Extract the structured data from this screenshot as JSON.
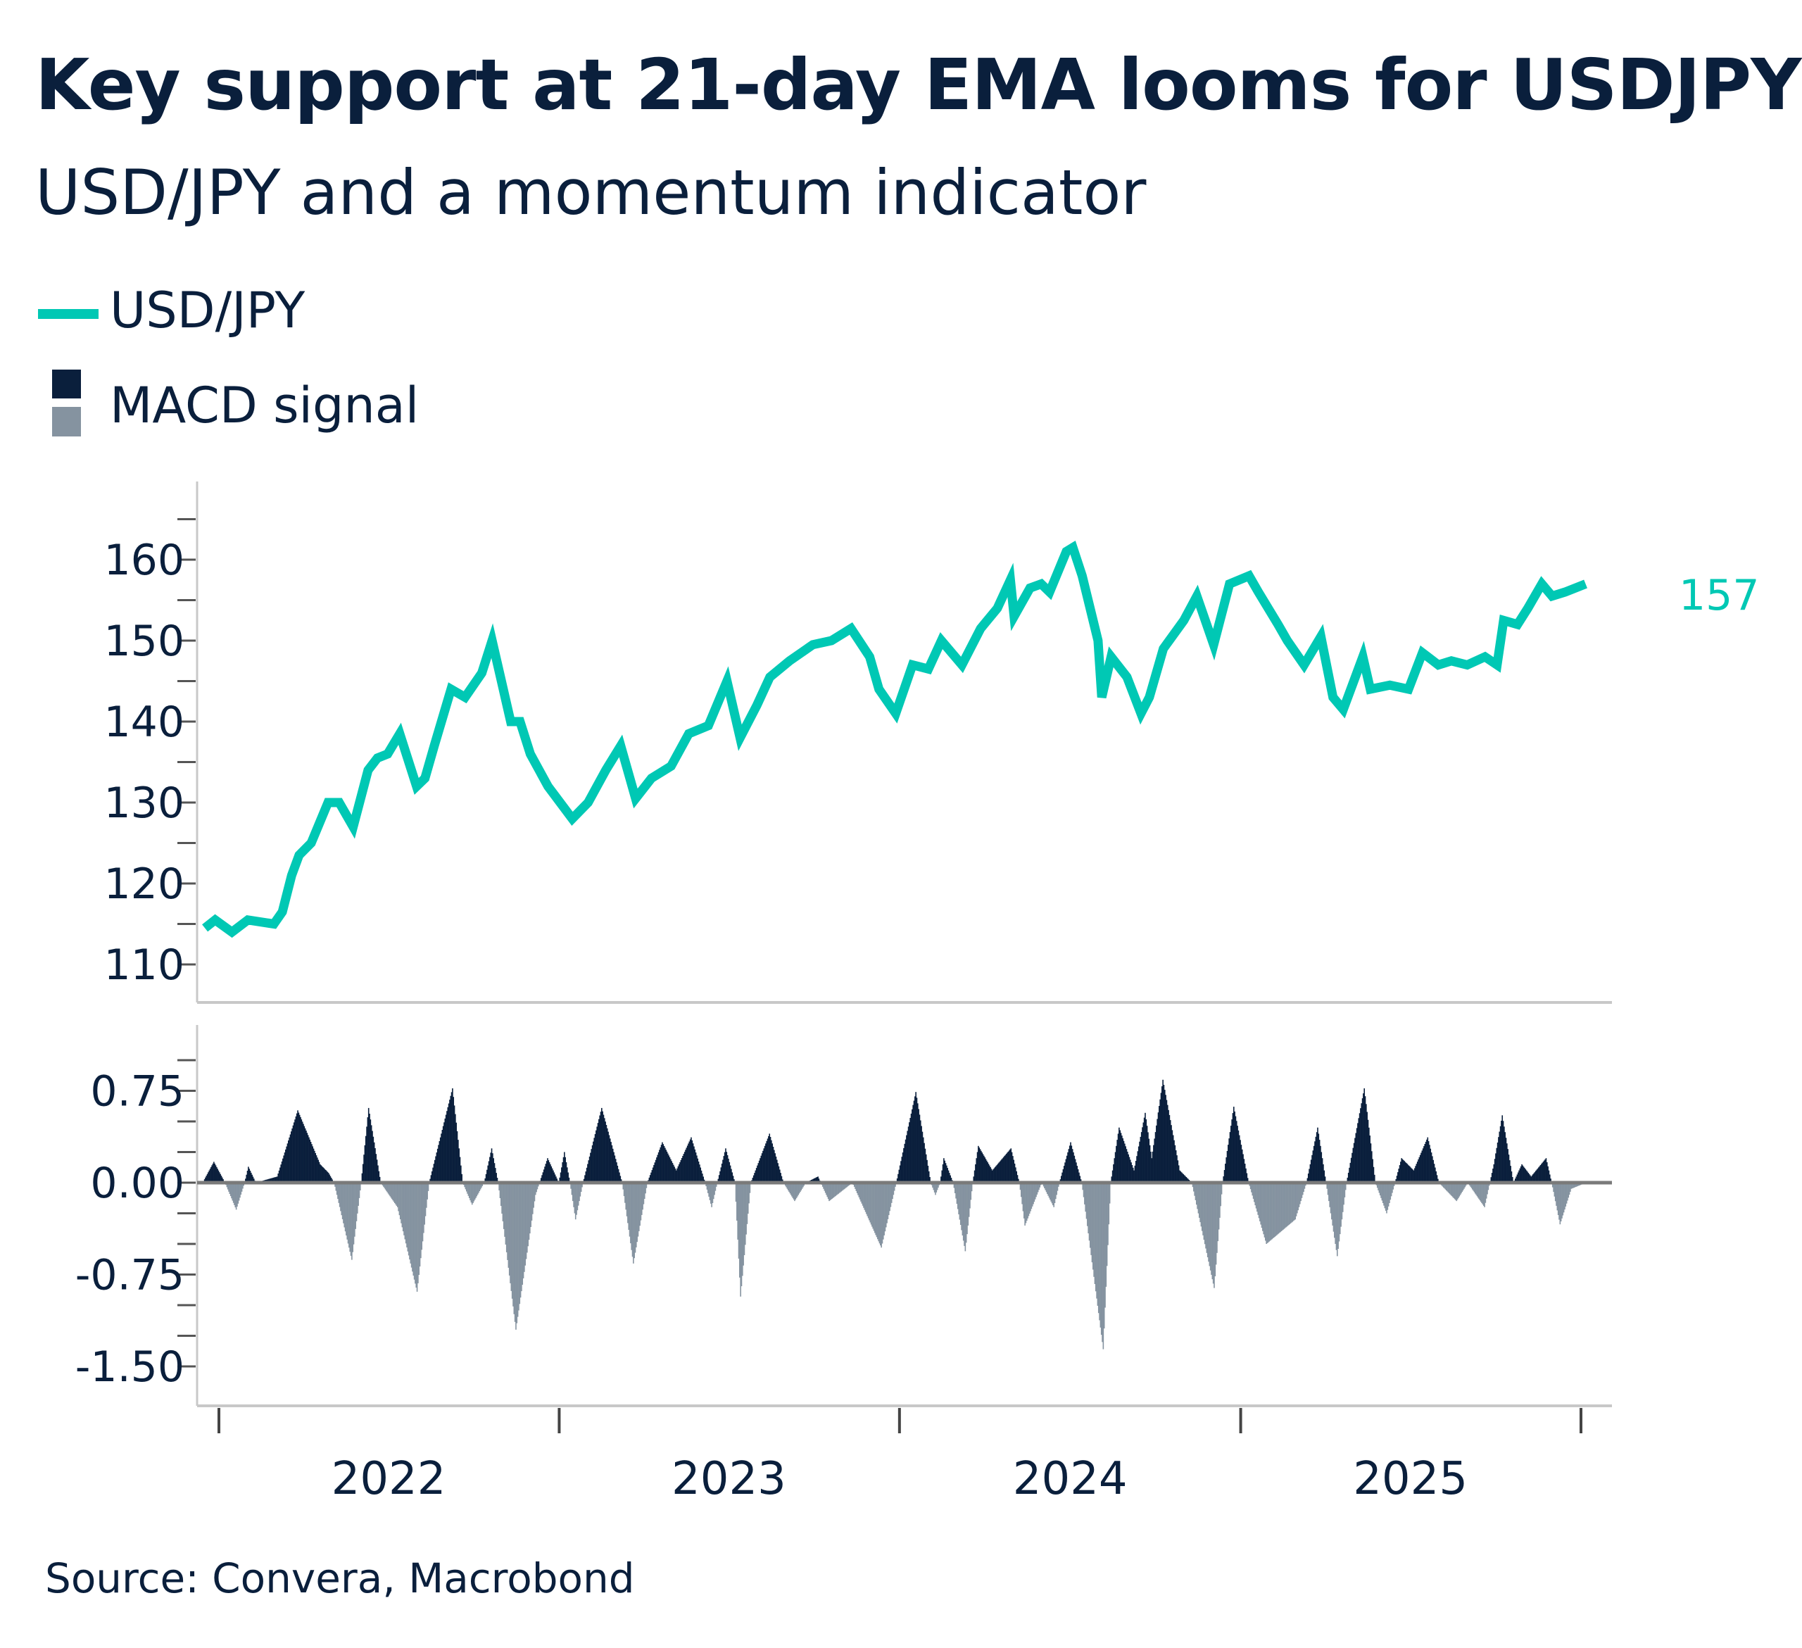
{
  "title": "Key support at 21-day EMA looms for USDJPY",
  "subtitle": "USD/JPY and a momentum indicator",
  "source": "Source: Convera, Macrobond",
  "colors": {
    "usdjpy": "#00c8b4",
    "macd_positive": "#0a1f3c",
    "macd_negative": "#8593a0",
    "text": "#0a1f3c"
  },
  "legend": [
    {
      "label": "USD/JPY",
      "icon": "line-swatch"
    },
    {
      "label": "MACD signal",
      "icon": "two-tone-bar-swatch"
    }
  ],
  "chart_data": [
    {
      "type": "line",
      "series": [
        {
          "name": "USD/JPY",
          "points": [
            [
              "2021-12-17",
              114.5
            ],
            [
              "2021-12-28",
              115.5
            ],
            [
              "2022-01-15",
              114
            ],
            [
              "2022-02-01",
              115.5
            ],
            [
              "2022-03-01",
              115
            ],
            [
              "2022-03-10",
              116.5
            ],
            [
              "2022-03-20",
              121
            ],
            [
              "2022-03-28",
              123.5
            ],
            [
              "2022-04-10",
              125
            ],
            [
              "2022-04-28",
              130
            ],
            [
              "2022-05-10",
              130
            ],
            [
              "2022-05-25",
              127
            ],
            [
              "2022-06-10",
              134
            ],
            [
              "2022-06-20",
              135.5
            ],
            [
              "2022-07-01",
              136
            ],
            [
              "2022-07-14",
              138.5
            ],
            [
              "2022-08-01",
              132
            ],
            [
              "2022-08-10",
              133
            ],
            [
              "2022-08-20",
              137
            ],
            [
              "2022-09-07",
              144
            ],
            [
              "2022-09-22",
              143
            ],
            [
              "2022-10-10",
              146
            ],
            [
              "2022-10-21",
              150
            ],
            [
              "2022-10-25",
              148
            ],
            [
              "2022-11-10",
              140
            ],
            [
              "2022-11-20",
              140
            ],
            [
              "2022-12-01",
              136
            ],
            [
              "2022-12-20",
              132
            ],
            [
              "2023-01-15",
              128
            ],
            [
              "2023-02-01",
              130
            ],
            [
              "2023-02-20",
              134
            ],
            [
              "2023-03-08",
              137
            ],
            [
              "2023-03-24",
              130.5
            ],
            [
              "2023-04-10",
              133
            ],
            [
              "2023-05-01",
              134.5
            ],
            [
              "2023-05-20",
              138.5
            ],
            [
              "2023-06-10",
              139.5
            ],
            [
              "2023-06-30",
              145
            ],
            [
              "2023-07-14",
              138
            ],
            [
              "2023-08-01",
              142
            ],
            [
              "2023-08-15",
              145.5
            ],
            [
              "2023-09-05",
              147.5
            ],
            [
              "2023-09-30",
              149.5
            ],
            [
              "2023-10-20",
              150
            ],
            [
              "2023-11-10",
              151.5
            ],
            [
              "2023-11-30",
              148
            ],
            [
              "2023-12-10",
              144
            ],
            [
              "2023-12-28",
              141
            ],
            [
              "2024-01-15",
              147
            ],
            [
              "2024-02-01",
              146.5
            ],
            [
              "2024-02-15",
              150
            ],
            [
              "2024-03-08",
              147
            ],
            [
              "2024-03-28",
              151.5
            ],
            [
              "2024-04-15",
              154
            ],
            [
              "2024-04-29",
              157.5
            ],
            [
              "2024-05-03",
              153
            ],
            [
              "2024-05-20",
              156.5
            ],
            [
              "2024-06-01",
              157
            ],
            [
              "2024-06-10",
              156
            ],
            [
              "2024-06-28",
              161
            ],
            [
              "2024-07-05",
              161.5
            ],
            [
              "2024-07-15",
              158
            ],
            [
              "2024-08-01",
              150
            ],
            [
              "2024-08-05",
              143
            ],
            [
              "2024-08-15",
              148
            ],
            [
              "2024-09-01",
              145.5
            ],
            [
              "2024-09-16",
              141
            ],
            [
              "2024-09-25",
              143
            ],
            [
              "2024-10-10",
              149
            ],
            [
              "2024-11-01",
              152.5
            ],
            [
              "2024-11-15",
              155.5
            ],
            [
              "2024-12-03",
              149.5
            ],
            [
              "2024-12-20",
              157
            ],
            [
              "2025-01-10",
              158
            ],
            [
              "2025-01-20",
              156
            ],
            [
              "2025-02-10",
              152
            ],
            [
              "2025-02-20",
              150
            ],
            [
              "2025-03-10",
              147
            ],
            [
              "2025-03-28",
              150.5
            ],
            [
              "2025-04-10",
              143
            ],
            [
              "2025-04-21",
              141.5
            ],
            [
              "2025-05-12",
              148
            ],
            [
              "2025-05-20",
              144
            ],
            [
              "2025-06-10",
              144.5
            ],
            [
              "2025-06-30",
              144
            ],
            [
              "2025-07-15",
              148.5
            ],
            [
              "2025-08-01",
              147
            ],
            [
              "2025-08-15",
              147.5
            ],
            [
              "2025-09-01",
              147
            ],
            [
              "2025-09-20",
              148
            ],
            [
              "2025-10-03",
              147
            ],
            [
              "2025-10-10",
              152.5
            ],
            [
              "2025-10-25",
              152
            ],
            [
              "2025-11-05",
              154
            ],
            [
              "2025-11-20",
              157
            ],
            [
              "2025-12-01",
              155.5
            ],
            [
              "2025-12-15",
              156
            ],
            [
              "2026-01-06",
              157
            ]
          ]
        }
      ],
      "last_value_label": "157",
      "y_ticks": [
        "110",
        "120",
        "130",
        "140",
        "150",
        "160"
      ],
      "ylim": [
        105,
        165
      ]
    },
    {
      "type": "bar",
      "series": [
        {
          "name": "MACD signal",
          "points": [
            [
              "2021-12-14",
              0
            ],
            [
              "2021-12-26",
              0.17
            ],
            [
              "2022-01-07",
              0
            ],
            [
              "2022-01-19",
              -0.22
            ],
            [
              "2022-01-28",
              0
            ],
            [
              "2022-02-01",
              0.13
            ],
            [
              "2022-02-09",
              0
            ],
            [
              "2022-03-04",
              0.05
            ],
            [
              "2022-03-26",
              0.59
            ],
            [
              "2022-04-19",
              0.15
            ],
            [
              "2022-04-28",
              0.08
            ],
            [
              "2022-05-04",
              0
            ],
            [
              "2022-05-23",
              -0.63
            ],
            [
              "2022-06-02",
              0
            ],
            [
              "2022-06-10",
              0.61
            ],
            [
              "2022-06-23",
              0
            ],
            [
              "2022-07-11",
              -0.2
            ],
            [
              "2022-08-01",
              -0.89
            ],
            [
              "2022-08-14",
              0
            ],
            [
              "2022-09-08",
              0.77
            ],
            [
              "2022-09-19",
              0
            ],
            [
              "2022-09-29",
              -0.18
            ],
            [
              "2022-10-12",
              0
            ],
            [
              "2022-10-20",
              0.28
            ],
            [
              "2022-10-27",
              0
            ],
            [
              "2022-11-15",
              -1.2
            ],
            [
              "2022-12-06",
              -0.1
            ],
            [
              "2022-12-19",
              0.2
            ],
            [
              "2022-12-31",
              0
            ],
            [
              "2023-01-06",
              0.25
            ],
            [
              "2023-01-12",
              0
            ],
            [
              "2023-01-18",
              -0.3
            ],
            [
              "2023-01-26",
              0
            ],
            [
              "2023-02-15",
              0.61
            ],
            [
              "2023-03-09",
              0
            ],
            [
              "2023-03-21",
              -0.66
            ],
            [
              "2023-04-05",
              0
            ],
            [
              "2023-04-21",
              0.33
            ],
            [
              "2023-05-06",
              0.1
            ],
            [
              "2023-05-22",
              0.37
            ],
            [
              "2023-06-06",
              0
            ],
            [
              "2023-06-13",
              -0.2
            ],
            [
              "2023-06-19",
              0
            ],
            [
              "2023-06-28",
              0.28
            ],
            [
              "2023-07-08",
              0
            ],
            [
              "2023-07-14",
              -0.93
            ],
            [
              "2023-07-25",
              0
            ],
            [
              "2023-08-14",
              0.4
            ],
            [
              "2023-08-29",
              0
            ],
            [
              "2023-09-10",
              -0.15
            ],
            [
              "2023-09-22",
              0
            ],
            [
              "2023-10-05",
              0.05
            ],
            [
              "2023-10-17",
              -0.15
            ],
            [
              "2023-11-11",
              0
            ],
            [
              "2023-12-12",
              -0.53
            ],
            [
              "2023-12-28",
              0
            ],
            [
              "2024-01-18",
              0.74
            ],
            [
              "2024-02-03",
              0
            ],
            [
              "2024-02-08",
              -0.1
            ],
            [
              "2024-02-13",
              0
            ],
            [
              "2024-02-17",
              0.2
            ],
            [
              "2024-02-27",
              0
            ],
            [
              "2024-03-11",
              -0.56
            ],
            [
              "2024-03-19",
              0
            ],
            [
              "2024-03-25",
              0.3
            ],
            [
              "2024-04-09",
              0.1
            ],
            [
              "2024-04-29",
              0.28
            ],
            [
              "2024-05-08",
              0
            ],
            [
              "2024-05-14",
              -0.35
            ],
            [
              "2024-06-01",
              0
            ],
            [
              "2024-06-14",
              -0.2
            ],
            [
              "2024-06-20",
              0
            ],
            [
              "2024-07-02",
              0.33
            ],
            [
              "2024-07-14",
              0
            ],
            [
              "2024-08-06",
              -1.36
            ],
            [
              "2024-08-14",
              0
            ],
            [
              "2024-08-23",
              0.45
            ],
            [
              "2024-09-08",
              0.1
            ],
            [
              "2024-09-20",
              0.57
            ],
            [
              "2024-09-27",
              0.2
            ],
            [
              "2024-10-09",
              0.84
            ],
            [
              "2024-10-27",
              0.1
            ],
            [
              "2024-11-09",
              0
            ],
            [
              "2024-12-03",
              -0.86
            ],
            [
              "2024-12-12",
              0
            ],
            [
              "2024-12-24",
              0.62
            ],
            [
              "2025-01-09",
              0
            ],
            [
              "2025-01-28",
              -0.5
            ],
            [
              "2025-02-28",
              -0.3
            ],
            [
              "2025-03-12",
              0
            ],
            [
              "2025-03-24",
              0.45
            ],
            [
              "2025-04-02",
              0
            ],
            [
              "2025-04-14",
              -0.6
            ],
            [
              "2025-04-24",
              0
            ],
            [
              "2025-05-13",
              0.77
            ],
            [
              "2025-05-25",
              0
            ],
            [
              "2025-06-06",
              -0.25
            ],
            [
              "2025-06-15",
              0
            ],
            [
              "2025-06-22",
              0.2
            ],
            [
              "2025-07-05",
              0.1
            ],
            [
              "2025-07-20",
              0.37
            ],
            [
              "2025-08-01",
              0
            ],
            [
              "2025-08-20",
              -0.15
            ],
            [
              "2025-09-01",
              0
            ],
            [
              "2025-09-19",
              -0.2
            ],
            [
              "2025-09-29",
              0.15
            ],
            [
              "2025-10-08",
              0.55
            ],
            [
              "2025-10-20",
              0
            ],
            [
              "2025-10-29",
              0.15
            ],
            [
              "2025-11-08",
              0.05
            ],
            [
              "2025-11-24",
              0.2
            ],
            [
              "2025-11-30",
              0
            ],
            [
              "2025-12-09",
              -0.34
            ],
            [
              "2025-12-21",
              -0.05
            ],
            [
              "2026-01-06",
              0
            ]
          ]
        }
      ],
      "y_ticks": [
        "0.75",
        "0.00",
        "-0.75",
        "-1.50"
      ],
      "ylim": [
        -1.5,
        1.0
      ]
    }
  ],
  "x_axis": {
    "labels": [
      "2022",
      "2023",
      "2024",
      "2025"
    ],
    "range": [
      "2022-01-01",
      "2026-01-01"
    ]
  }
}
